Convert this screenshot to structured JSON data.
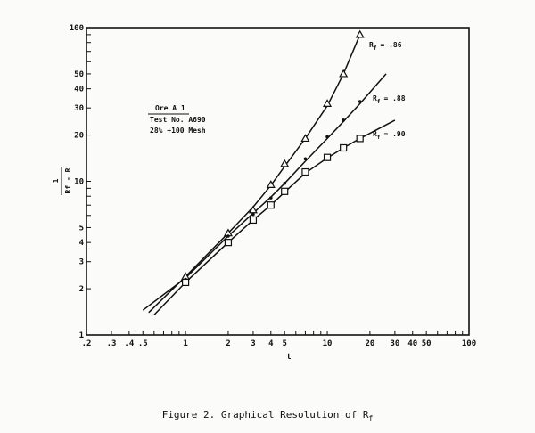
{
  "chart_data": {
    "type": "scatter",
    "title": "Figure 2.  Graphical Resolution of Rf",
    "xlabel": "t",
    "ylabel": "1 / (Rf - R)",
    "xscale": "log",
    "yscale": "log",
    "xlim": [
      0.2,
      100
    ],
    "ylim": [
      1,
      100
    ],
    "grid": false,
    "x_ticks": [
      ".2",
      ".3",
      ".4",
      ".5",
      "1",
      "2",
      "3",
      "4",
      "5",
      "10",
      "20",
      "30",
      "40",
      "50",
      "100"
    ],
    "y_ticks": [
      "1",
      "2",
      "3",
      "4",
      "5",
      "10",
      "20",
      "30",
      "40",
      "50",
      "100"
    ],
    "annotation": {
      "line1": "Ore A 1",
      "line2": "Test No. A690",
      "line3": "28% +100 Mesh"
    },
    "series": [
      {
        "name": "Rf = .86",
        "marker": "triangle",
        "label": "= .86",
        "x": [
          1,
          2,
          3,
          4,
          5,
          7,
          10,
          13,
          17
        ],
        "y": [
          2.4,
          4.6,
          6.5,
          9.5,
          13,
          19,
          32,
          50,
          90
        ],
        "line": [
          [
            0.55,
            1.4
          ],
          [
            1,
            2.4
          ],
          [
            2,
            4.6
          ],
          [
            3,
            6.8
          ],
          [
            4,
            9.4
          ],
          [
            5,
            12.5
          ],
          [
            7,
            19
          ],
          [
            10,
            31
          ],
          [
            13,
            50
          ],
          [
            17,
            90
          ]
        ]
      },
      {
        "name": "Rf = .88",
        "marker": "dot",
        "label": "= .88",
        "x": [
          1,
          2,
          3,
          4,
          5,
          7,
          10,
          13,
          17
        ],
        "y": [
          2.3,
          4.4,
          6.1,
          7.8,
          9.7,
          14,
          19.5,
          25,
          33
        ],
        "line": [
          [
            0.5,
            1.45
          ],
          [
            1,
            2.35
          ],
          [
            2,
            4.4
          ],
          [
            3,
            6.2
          ],
          [
            4,
            7.9
          ],
          [
            5,
            9.7
          ],
          [
            7,
            13.5
          ],
          [
            10,
            19
          ],
          [
            13,
            24.5
          ],
          [
            17,
            32
          ],
          [
            26,
            50
          ]
        ]
      },
      {
        "name": "Rf = .90",
        "marker": "square",
        "label": "= .90",
        "x": [
          1,
          2,
          3,
          4,
          5,
          7,
          10,
          13,
          17
        ],
        "y": [
          2.2,
          4.0,
          5.6,
          7.0,
          8.6,
          11.5,
          14.3,
          16.5,
          19
        ],
        "line": [
          [
            0.6,
            1.35
          ],
          [
            1,
            2.2
          ],
          [
            2,
            4.0
          ],
          [
            3,
            5.6
          ],
          [
            4,
            7.0
          ],
          [
            5,
            8.5
          ],
          [
            7,
            11.3
          ],
          [
            10,
            14.2
          ],
          [
            13,
            16.5
          ],
          [
            17,
            19
          ],
          [
            30,
            25
          ]
        ]
      }
    ]
  },
  "caption": {
    "prefix": "Figure 2.  Graphical Resolution of R",
    "subscript": "f"
  },
  "axes": {
    "xlabel": "t",
    "ylabel_num": "1",
    "ylabel_den": "Rf - R"
  }
}
